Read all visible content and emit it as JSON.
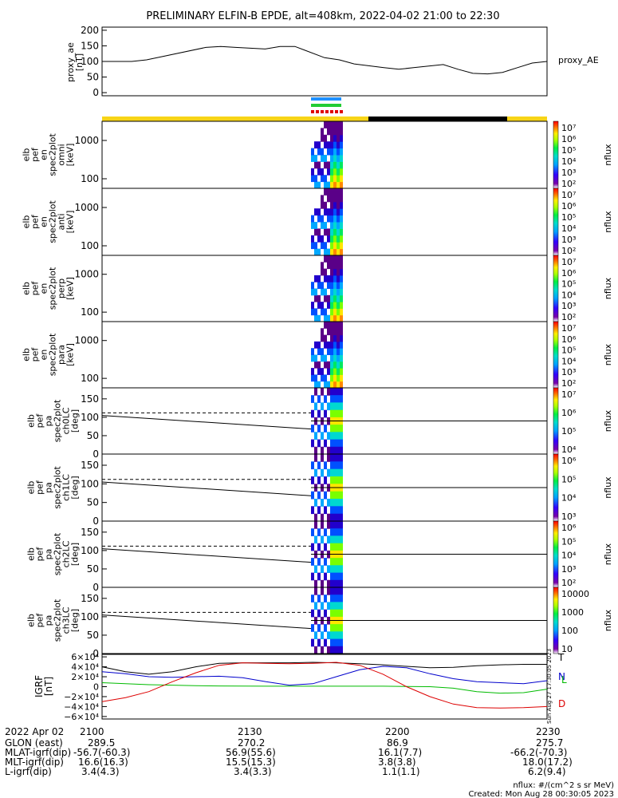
{
  "title": "PRELIMINARY ELFIN-B EPDE, alt=408km, 2022-04-02 21:00 to 22:30",
  "colors": {
    "day_bar": "#f7d417",
    "night_bar": "#000000",
    "blue_mark": "#1e90ff",
    "green_mark": "#22cc33",
    "red_mark": "#e00000",
    "T": "#000000",
    "N": "#0000cc",
    "L": "#00bb00",
    "D": "#dd0000"
  },
  "chart_data": [
    {
      "type": "line",
      "id": "proxy_ae",
      "ylabel": [
        "proxy_ae",
        "[nT]"
      ],
      "legend": "proxy_AE",
      "ylim": [
        -10,
        210
      ],
      "yticks": [
        0,
        50,
        100,
        150,
        200
      ],
      "x_minutes": [
        0,
        10,
        15,
        20,
        35,
        40,
        45,
        55,
        60,
        65,
        75,
        80,
        85,
        95,
        100,
        105,
        115,
        120,
        125,
        130,
        135,
        140,
        145,
        150
      ],
      "values": [
        100,
        100,
        105,
        115,
        145,
        148,
        145,
        140,
        148,
        148,
        112,
        105,
        92,
        80,
        75,
        80,
        90,
        75,
        62,
        60,
        65,
        80,
        95,
        100
      ]
    },
    {
      "type": "heatmap",
      "id": "en_omni",
      "ylabel": [
        "elb",
        "pef",
        "en",
        "spec2plot",
        "omni",
        "[keV]"
      ],
      "y_scale": "log",
      "yticks": [
        100,
        1000
      ],
      "colorbar": {
        "label": "nflux",
        "ticks": [
          "10^7",
          "10^6",
          "10^5",
          "10^4",
          "10^3",
          "10^2"
        ]
      }
    },
    {
      "type": "heatmap",
      "id": "en_anti",
      "ylabel": [
        "elb",
        "pef",
        "en",
        "spec2plot",
        "anti",
        "[keV]"
      ],
      "y_scale": "log",
      "yticks": [
        100,
        1000
      ],
      "colorbar": {
        "label": "nflux",
        "ticks": [
          "10^7",
          "10^6",
          "10^5",
          "10^4",
          "10^3",
          "10^2"
        ]
      }
    },
    {
      "type": "heatmap",
      "id": "en_perp",
      "ylabel": [
        "elb",
        "pef",
        "en",
        "spec2plot",
        "perp",
        "[keV]"
      ],
      "y_scale": "log",
      "yticks": [
        100,
        1000
      ],
      "colorbar": {
        "label": "nflux",
        "ticks": [
          "10^7",
          "10^6",
          "10^5",
          "10^4",
          "10^3",
          "10^2"
        ]
      }
    },
    {
      "type": "heatmap",
      "id": "en_para",
      "ylabel": [
        "elb",
        "pef",
        "en",
        "spec2plot",
        "para",
        "[keV]"
      ],
      "y_scale": "log",
      "yticks": [
        100,
        1000
      ],
      "colorbar": {
        "label": "nflux",
        "ticks": [
          "10^7",
          "10^6",
          "10^5",
          "10^4",
          "10^3",
          "10^2"
        ]
      }
    },
    {
      "type": "heatmap",
      "id": "pa_ch0",
      "ylabel": [
        "elb",
        "pef",
        "pa",
        "spec2plot",
        "ch0LC",
        "[deg]"
      ],
      "yticks": [
        0,
        50,
        100,
        150
      ],
      "ylim": [
        0,
        180
      ],
      "colorbar": {
        "label": "nflux",
        "ticks": [
          "10^7",
          "10^6",
          "10^5",
          "10^4"
        ]
      }
    },
    {
      "type": "heatmap",
      "id": "pa_ch1",
      "ylabel": [
        "elb",
        "pef",
        "pa",
        "spec2plot",
        "ch1LC",
        "[deg]"
      ],
      "yticks": [
        0,
        50,
        100,
        150
      ],
      "ylim": [
        0,
        180
      ],
      "colorbar": {
        "label": "nflux",
        "ticks": [
          "10^6",
          "10^5",
          "10^4",
          "10^3"
        ]
      }
    },
    {
      "type": "heatmap",
      "id": "pa_ch2",
      "ylabel": [
        "elb",
        "pef",
        "pa",
        "spec2plot",
        "ch2LC",
        "[deg]"
      ],
      "yticks": [
        0,
        50,
        100,
        150
      ],
      "ylim": [
        0,
        180
      ],
      "colorbar": {
        "label": "nflux",
        "ticks": [
          "10^6",
          "10^5",
          "10^4",
          "10^3",
          "10^2"
        ]
      }
    },
    {
      "type": "heatmap",
      "id": "pa_ch3",
      "ylabel": [
        "elb",
        "pef",
        "pa",
        "spec2plot",
        "ch3LC",
        "[deg]"
      ],
      "yticks": [
        0,
        50,
        100,
        150
      ],
      "ylim": [
        0,
        180
      ],
      "colorbar": {
        "label": "nflux",
        "ticks": [
          "10000",
          "1000",
          "100",
          "10"
        ]
      }
    },
    {
      "type": "line",
      "id": "igrf",
      "ylabel": [
        "IGRF",
        "[nT]"
      ],
      "ylim": [
        -65000,
        65000
      ],
      "yticks": [
        "6×10⁴",
        "4×10⁴",
        "2×10⁴",
        "0",
        "−2×10⁴",
        "−4×10⁴",
        "−6×10⁴"
      ],
      "series": [
        {
          "name": "T",
          "values": [
            40000,
            30000,
            25000,
            30000,
            40000,
            47000,
            48000,
            48000,
            48000,
            49000,
            48000,
            46000,
            44000,
            41000,
            38000,
            39000,
            42000,
            44000,
            45000,
            45000
          ]
        },
        {
          "name": "N",
          "values": [
            30000,
            26000,
            20000,
            19000,
            20000,
            21000,
            18000,
            10000,
            3000,
            6000,
            20000,
            34000,
            41000,
            38000,
            26000,
            16000,
            10000,
            8000,
            6000,
            12000
          ]
        },
        {
          "name": "L",
          "values": [
            8000,
            6000,
            4000,
            3000,
            2000,
            1500,
            1200,
            1000,
            1000,
            1000,
            1000,
            1000,
            900,
            500,
            0,
            -3000,
            -10000,
            -13000,
            -12000,
            -5000
          ]
        },
        {
          "name": "D",
          "values": [
            -30000,
            -22000,
            -10000,
            10000,
            28000,
            43000,
            48000,
            47000,
            46000,
            47000,
            49000,
            43000,
            25000,
            0,
            -20000,
            -35000,
            -42000,
            -43000,
            -42000,
            -40000
          ]
        }
      ],
      "side_note": "Sun Aug 27 17:30:05 2023"
    }
  ],
  "footer": {
    "date": "2022 Apr 02",
    "time_ticks": [
      "2100",
      "2130",
      "2200",
      "2230"
    ],
    "rows": [
      {
        "label": "GLON (east)",
        "vals": [
          "289.5",
          "270.2",
          "86.9",
          "275.7"
        ]
      },
      {
        "label": "MLAT-igrf(dip)",
        "vals": [
          "-56.7(-60.3)",
          "56.9(55.6)",
          "16.1(7.7)",
          "-66.2(-70.3)"
        ]
      },
      {
        "label": "MLT-igrf(dip)",
        "vals": [
          "16.6(16.3)",
          "15.5(15.3)",
          "3.8(3.8)",
          "18.0(17.2)"
        ]
      },
      {
        "label": "L-igrf(dip)",
        "vals": [
          "3.4(4.3)",
          "3.4(3.3)",
          "1.1(1.1)",
          "6.2(9.4)"
        ]
      }
    ],
    "units_note": "nflux: #/(cm^2 s sr MeV)",
    "created": "Created: Mon Aug 28 00:30:05 2023"
  }
}
